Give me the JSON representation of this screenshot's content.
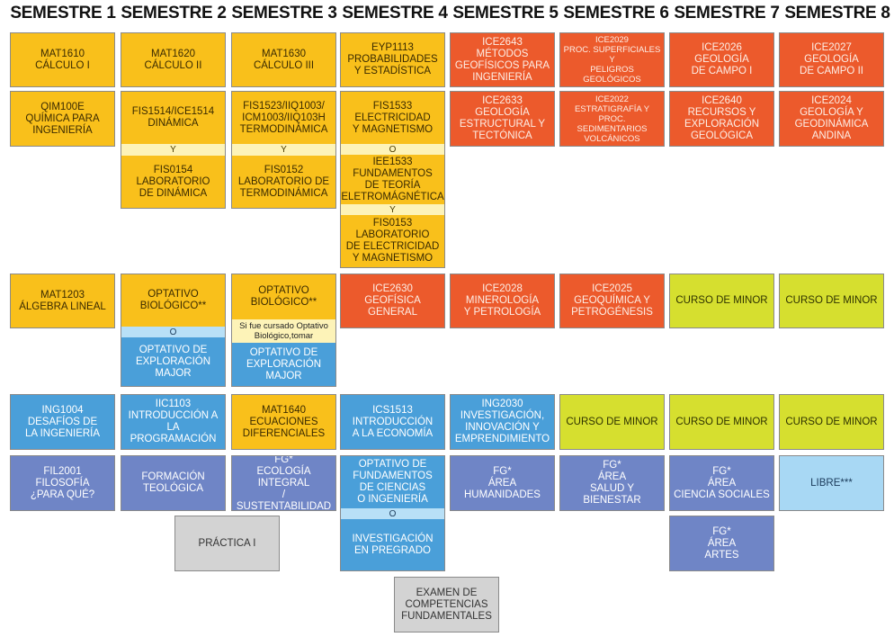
{
  "headers": [
    "SEMESTRE 1",
    "SEMESTRE 2",
    "SEMESTRE 3",
    "SEMESTRE 4",
    "SEMESTRE 5",
    "SEMESTRE 6",
    "SEMESTRE 7",
    "SEMESTRE 8"
  ],
  "courses": {
    "s1": {
      "mat1610": "MAT1610\nCÁLCULO I",
      "qim100e": "QIM100E\nQUÍMICA PARA\nINGENIERÍA",
      "mat1203": "MAT1203\nÁLGEBRA LINEAL",
      "ing1004": "ING1004\nDESAFÍOS DE\nLA INGENIERÍA",
      "fil2001": "FIL2001\nFILOSOFÍA\n¿PARA QUÉ?"
    },
    "s2": {
      "mat1620": "MAT1620\nCÁLCULO II",
      "fis1514": "FIS1514/ICE1514\nDINÁMICA",
      "sep_y": "Y",
      "fis0154": "FIS0154\nLABORATORIO\nDE DINÁMICA",
      "optativo_bio": "OPTATIVO\nBIOLÓGICO**",
      "sep_o": "O",
      "optativo_exp": "OPTATIVO DE\nEXPLORACIÓN\nMAJOR",
      "iic1103": "IIC1103\nINTRODUCCIÓN A\nLA PROGRAMACIÓN",
      "formacion": "FORMACIÓN\nTEOLÓGICA",
      "practica": "PRÁCTICA I"
    },
    "s3": {
      "mat1630": "MAT1630\nCÁLCULO III",
      "fis1523": "FIS1523/IIQ1003/\nICM1003/IIQ103H\nTERMODINÁMICA",
      "sep_y": "Y",
      "fis0152": "FIS0152\nLABORATORIO DE\nTERMODINÁMICA",
      "optativo_bio": "OPTATIVO\nBIOLÓGICO**",
      "note": "Si fue cursado Optativo\nBiológico,tomar",
      "optativo_exp": "OPTATIVO DE\nEXPLORACIÓN\nMAJOR",
      "mat1640": "MAT1640\nECUACIONES\nDIFERENCIALES",
      "fg_eco": "FG*\nECOLOGÍA INTEGRAL\n/ SUSTENTABILIDAD"
    },
    "s4": {
      "eyp1113": "EYP1113\nPROBABILIDADES\nY ESTADÍSTICA",
      "fis1533": "FIS1533\nELECTRICIDAD\nY MAGNETISMO",
      "sep_o": "O",
      "iee1533": "IEE1533\nFUNDAMENTOS\nDE TEORÍA\nELETROMÁGNÉTICA",
      "sep_y": "Y",
      "fis0153": "FIS0153\nLABORATORIO\nDE ELECTRICIDAD\nY MAGNETISMO",
      "ice2630": "ICE2630\nGEOFÍSICA\nGENERAL",
      "ics1513": "ICS1513\nINTRODUCCIÓN\nA LA ECONOMÍA",
      "optativo_fund": "OPTATIVO DE\nFUNDAMENTOS\nDE CIENCIAS\nO INGENIERÍA",
      "sep_o2": "O",
      "investigacion": "INVESTIGACIÓN\nEN PREGRADO",
      "examen": "EXAMEN DE\nCOMPETENCIAS\nFUNDAMENTALES"
    },
    "s5": {
      "ice2643": "ICE2643\nMÉTODOS\nGEOFÍSICOS PARA\nINGENIERÍA",
      "ice2633": "ICE2633\nGEOLOGÍA\nESTRUCTURAL Y\nTECTÓNICA",
      "ice2028": "ICE2028\nMINEROLOGÍA\nY PETROLOGÍA",
      "ing2030": "ING2030\nINVESTIGACIÓN,\nINNOVACIÓN Y\nEMPRENDIMIENTO",
      "fg_hum": "FG*\nÁREA\nHUMANIDADES"
    },
    "s6": {
      "ice2029": "ICE2029\nPROC. SUPERFICIALES Y\nPELIGROS GEOLÓGICOS",
      "ice2022": "ICE2022\nESTRATIGRAFÍA Y PROC.\nSEDIMENTARIOS\nVOLCÁNICOS",
      "ice2025": "ICE2025\nGEOQUÍMICA Y\nPETROGÉNESIS",
      "minor": "CURSO DE MINOR",
      "fg_salud": "FG*\nÁREA\nSALUD Y BIENESTAR"
    },
    "s7": {
      "ice2026": "ICE2026\nGEOLOGÍA\nDE CAMPO I",
      "ice2640": "ICE2640\nRECURSOS Y\nEXPLORACIÓN\nGEOLÓGICA",
      "minor1": "CURSO DE MINOR",
      "minor2": "CURSO DE MINOR",
      "fg_soc": "FG*\nÁREA\nCIENCIA SOCIALES",
      "fg_artes": "FG*\nÁREA\nARTES"
    },
    "s8": {
      "ice2027": "ICE2027\nGEOLOGÍA\nDE CAMPO II",
      "ice2024": "ICE2024\nGEOLOGÍA Y\nGEODINÁMICA\nANDINA",
      "minor1": "CURSO DE MINOR",
      "minor2": "CURSO DE MINOR",
      "libre": "LIBRE***"
    }
  },
  "colors": {
    "basic_sciences": "#f9c01b",
    "major": "#ec5a2c",
    "general": "#4a9fd9",
    "fg": "#6f85c6",
    "minor": "#d6df2f",
    "libre": "#a8d8f4",
    "practice": "#d3d3d3"
  }
}
